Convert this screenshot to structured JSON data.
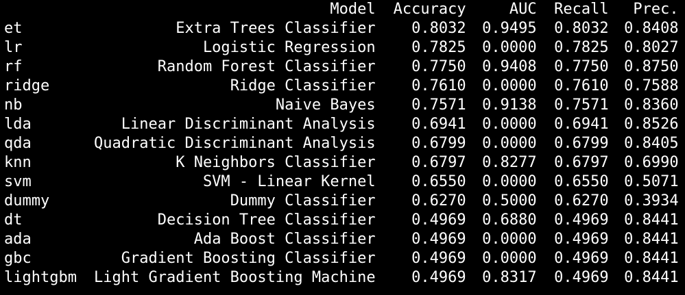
{
  "output": {
    "columns": [
      "",
      "Model",
      "Accuracy",
      "AUC",
      "Recall",
      "Prec."
    ],
    "rows": [
      {
        "id": "et",
        "model": "Extra Trees Classifier",
        "accuracy": "0.8032",
        "auc": "0.9495",
        "recall": "0.8032",
        "prec": "0.8408"
      },
      {
        "id": "lr",
        "model": "Logistic Regression",
        "accuracy": "0.7825",
        "auc": "0.0000",
        "recall": "0.7825",
        "prec": "0.8027"
      },
      {
        "id": "rf",
        "model": "Random Forest Classifier",
        "accuracy": "0.7750",
        "auc": "0.9408",
        "recall": "0.7750",
        "prec": "0.8750"
      },
      {
        "id": "ridge",
        "model": "Ridge Classifier",
        "accuracy": "0.7610",
        "auc": "0.0000",
        "recall": "0.7610",
        "prec": "0.7588"
      },
      {
        "id": "nb",
        "model": "Naive Bayes",
        "accuracy": "0.7571",
        "auc": "0.9138",
        "recall": "0.7571",
        "prec": "0.8360"
      },
      {
        "id": "lda",
        "model": "Linear Discriminant Analysis",
        "accuracy": "0.6941",
        "auc": "0.0000",
        "recall": "0.6941",
        "prec": "0.8526"
      },
      {
        "id": "qda",
        "model": "Quadratic Discriminant Analysis",
        "accuracy": "0.6799",
        "auc": "0.0000",
        "recall": "0.6799",
        "prec": "0.8405"
      },
      {
        "id": "knn",
        "model": "K Neighbors Classifier",
        "accuracy": "0.6797",
        "auc": "0.8277",
        "recall": "0.6797",
        "prec": "0.6990"
      },
      {
        "id": "svm",
        "model": "SVM - Linear Kernel",
        "accuracy": "0.6550",
        "auc": "0.0000",
        "recall": "0.6550",
        "prec": "0.5071"
      },
      {
        "id": "dummy",
        "model": "Dummy Classifier",
        "accuracy": "0.6270",
        "auc": "0.5000",
        "recall": "0.6270",
        "prec": "0.3934"
      },
      {
        "id": "dt",
        "model": "Decision Tree Classifier",
        "accuracy": "0.4969",
        "auc": "0.6880",
        "recall": "0.4969",
        "prec": "0.8441"
      },
      {
        "id": "ada",
        "model": "Ada Boost Classifier",
        "accuracy": "0.4969",
        "auc": "0.0000",
        "recall": "0.4969",
        "prec": "0.8441"
      },
      {
        "id": "gbc",
        "model": "Gradient Boosting Classifier",
        "accuracy": "0.4969",
        "auc": "0.0000",
        "recall": "0.4969",
        "prec": "0.8441"
      },
      {
        "id": "lightgbm",
        "model": "Light Gradient Boosting Machine",
        "accuracy": "0.4969",
        "auc": "0.8317",
        "recall": "0.4969",
        "prec": "0.8441"
      }
    ]
  }
}
